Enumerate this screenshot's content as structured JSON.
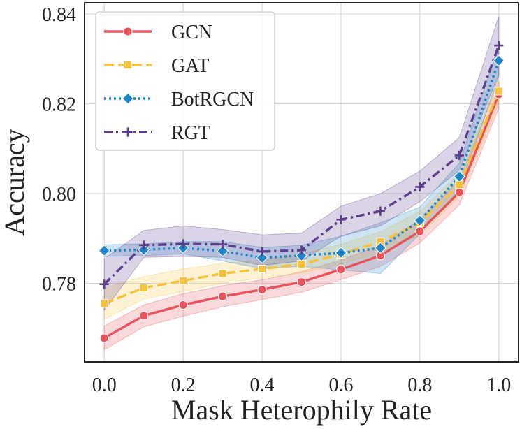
{
  "chart_data": {
    "type": "line",
    "xlabel": "Mask Heterophily Rate",
    "ylabel": "Accuracy",
    "xlim": [
      -0.05,
      1.05
    ],
    "ylim": [
      0.7625,
      0.8425
    ],
    "xticks": [
      0.0,
      0.2,
      0.4,
      0.6,
      0.8,
      1.0
    ],
    "xtick_labels": [
      "0.0",
      "0.2",
      "0.4",
      "0.6",
      "0.8",
      "1.0"
    ],
    "yticks": [
      0.78,
      0.8,
      0.82,
      0.84
    ],
    "ytick_labels": [
      "0.78",
      "0.80",
      "0.82",
      "0.84"
    ],
    "grid": true,
    "legend_position": "top-left",
    "x": [
      0.0,
      0.1,
      0.2,
      0.3,
      0.4,
      0.5,
      0.6,
      0.7,
      0.8,
      0.9,
      1.0
    ],
    "series": [
      {
        "name": "GCN",
        "color": "#e8525a",
        "marker": "circle",
        "dash": "solid",
        "values": [
          0.7678,
          0.7728,
          0.7752,
          0.7771,
          0.7786,
          0.7803,
          0.7831,
          0.7862,
          0.7916,
          0.8003,
          0.8221
        ],
        "lower": [
          0.7652,
          0.7703,
          0.7727,
          0.7748,
          0.7764,
          0.778,
          0.7808,
          0.7838,
          0.789,
          0.7975,
          0.819
        ],
        "upper": [
          0.7705,
          0.7752,
          0.7777,
          0.7795,
          0.7808,
          0.7826,
          0.7852,
          0.7885,
          0.7942,
          0.803,
          0.825
        ]
      },
      {
        "name": "GAT",
        "color": "#f7c23a",
        "marker": "square",
        "dash": "dashed",
        "values": [
          0.7755,
          0.779,
          0.7806,
          0.7822,
          0.7832,
          0.7843,
          0.7865,
          0.7893,
          0.7935,
          0.802,
          0.8228
        ],
        "lower": [
          0.772,
          0.7765,
          0.7782,
          0.78,
          0.7812,
          0.7823,
          0.7843,
          0.7868,
          0.7908,
          0.7993,
          0.82
        ],
        "upper": [
          0.779,
          0.7815,
          0.7832,
          0.7845,
          0.7852,
          0.7865,
          0.7887,
          0.7915,
          0.796,
          0.8045,
          0.8255
        ]
      },
      {
        "name": "BotRGCN",
        "color": "#1f85c7",
        "marker": "diamond",
        "dash": "dotted",
        "values": [
          0.7873,
          0.7875,
          0.7879,
          0.7872,
          0.7857,
          0.7862,
          0.7868,
          0.7879,
          0.794,
          0.8038,
          0.8296
        ],
        "lower": [
          0.786,
          0.7862,
          0.7866,
          0.785,
          0.7833,
          0.7838,
          0.783,
          0.7822,
          0.791,
          0.8008,
          0.826
        ],
        "upper": [
          0.7886,
          0.7888,
          0.7893,
          0.7893,
          0.788,
          0.7885,
          0.7905,
          0.7935,
          0.797,
          0.8068,
          0.833
        ]
      },
      {
        "name": "RGT",
        "color": "#5d3d8c",
        "marker": "plus",
        "dash": "dashdot",
        "values": [
          0.7798,
          0.7885,
          0.7888,
          0.7887,
          0.7871,
          0.7874,
          0.7942,
          0.7961,
          0.8015,
          0.8085,
          0.833
        ],
        "lower": [
          0.774,
          0.7858,
          0.786,
          0.7858,
          0.784,
          0.785,
          0.7905,
          0.7928,
          0.7982,
          0.8052,
          0.8265
        ],
        "upper": [
          0.7855,
          0.7918,
          0.7928,
          0.792,
          0.7908,
          0.7912,
          0.7972,
          0.8,
          0.805,
          0.8125,
          0.8395
        ]
      }
    ]
  }
}
